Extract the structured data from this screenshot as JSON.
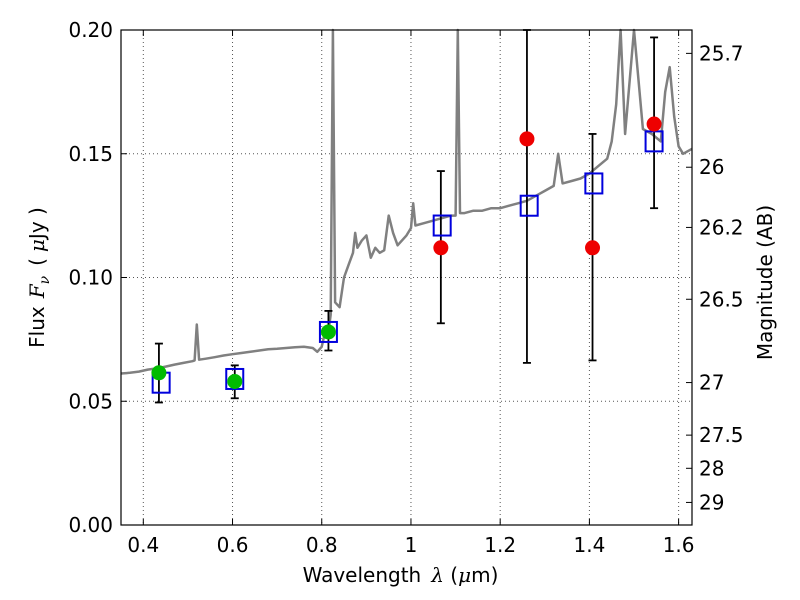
{
  "chart_data": {
    "type": "scatter",
    "title": "",
    "xlabel": "Wavelength",
    "xlabel_math": "λ",
    "xlabel_unit_open": " (",
    "xlabel_unit_mu": "μ",
    "xlabel_unit_rest": "m)",
    "ylabel": "Flux",
    "ylabel_math": "F",
    "ylabel_math_sub": "ν",
    "ylabel_unit_open": "(",
    "ylabel_unit_mu": "μ",
    "ylabel_unit_rest": "Jy )",
    "y2label": "Magnitude (AB)",
    "xlim": [
      0.35,
      1.63
    ],
    "ylim": [
      0.0,
      0.2
    ],
    "grid": true,
    "x_ticks": [
      0.4,
      0.6,
      0.8,
      1.0,
      1.2,
      1.4,
      1.6
    ],
    "x_tick_labels": [
      "0.4",
      "0.6",
      "0.8",
      "1",
      "1.2",
      "1.4",
      "1.6"
    ],
    "y_ticks": [
      0.0,
      0.05,
      0.1,
      0.15,
      0.2
    ],
    "y_tick_labels": [
      "0.00",
      "0.05",
      "0.10",
      "0.15",
      "0.20"
    ],
    "mag_ticks": [
      {
        "label": "25.7",
        "mag": 25.7
      },
      {
        "label": "26",
        "mag": 26.0
      },
      {
        "label": "26.2",
        "mag": 26.2
      },
      {
        "label": "26.5",
        "mag": 26.5
      },
      {
        "label": "27",
        "mag": 27.0
      },
      {
        "label": "27.5",
        "mag": 27.5
      },
      {
        "label": "28",
        "mag": 28.0
      },
      {
        "label": "29",
        "mag": 29.0
      }
    ],
    "colors": {
      "spectrum": "#808080",
      "green": "#00bb00",
      "red": "#ee0000",
      "model_box": "#0000dd",
      "errorbar": "#000000",
      "grid": "#555555"
    },
    "series": [
      {
        "name": "model spectrum",
        "style": "line",
        "points": [
          [
            0.35,
            0.0612
          ],
          [
            0.37,
            0.0615
          ],
          [
            0.39,
            0.062
          ],
          [
            0.41,
            0.0628
          ],
          [
            0.43,
            0.0633
          ],
          [
            0.45,
            0.064
          ],
          [
            0.47,
            0.0648
          ],
          [
            0.49,
            0.0655
          ],
          [
            0.51,
            0.0662
          ],
          [
            0.515,
            0.0665
          ],
          [
            0.52,
            0.081
          ],
          [
            0.525,
            0.0668
          ],
          [
            0.54,
            0.0672
          ],
          [
            0.56,
            0.0678
          ],
          [
            0.58,
            0.0685
          ],
          [
            0.6,
            0.069
          ],
          [
            0.62,
            0.0695
          ],
          [
            0.64,
            0.07
          ],
          [
            0.66,
            0.0705
          ],
          [
            0.68,
            0.071
          ],
          [
            0.7,
            0.0712
          ],
          [
            0.72,
            0.0715
          ],
          [
            0.74,
            0.0718
          ],
          [
            0.76,
            0.072
          ],
          [
            0.78,
            0.0715
          ],
          [
            0.79,
            0.07
          ],
          [
            0.8,
            0.072
          ],
          [
            0.81,
            0.08
          ],
          [
            0.815,
            0.078
          ],
          [
            0.82,
            0.085
          ],
          [
            0.825,
            0.2
          ],
          [
            0.83,
            0.09
          ],
          [
            0.84,
            0.088
          ],
          [
            0.85,
            0.1
          ],
          [
            0.86,
            0.105
          ],
          [
            0.87,
            0.11
          ],
          [
            0.875,
            0.118
          ],
          [
            0.88,
            0.112
          ],
          [
            0.89,
            0.115
          ],
          [
            0.9,
            0.117
          ],
          [
            0.91,
            0.108
          ],
          [
            0.92,
            0.112
          ],
          [
            0.93,
            0.11
          ],
          [
            0.94,
            0.111
          ],
          [
            0.95,
            0.125
          ],
          [
            0.96,
            0.118
          ],
          [
            0.97,
            0.113
          ],
          [
            0.98,
            0.115
          ],
          [
            0.99,
            0.117
          ],
          [
            1.0,
            0.12
          ],
          [
            1.005,
            0.13
          ],
          [
            1.01,
            0.121
          ],
          [
            1.03,
            0.122
          ],
          [
            1.05,
            0.123
          ],
          [
            1.07,
            0.124
          ],
          [
            1.09,
            0.125
          ],
          [
            1.1,
            0.125
          ],
          [
            1.105,
            0.2
          ],
          [
            1.11,
            0.126
          ],
          [
            1.12,
            0.126
          ],
          [
            1.14,
            0.127
          ],
          [
            1.16,
            0.127
          ],
          [
            1.18,
            0.128
          ],
          [
            1.2,
            0.128
          ],
          [
            1.22,
            0.129
          ],
          [
            1.24,
            0.13
          ],
          [
            1.26,
            0.131
          ],
          [
            1.28,
            0.133
          ],
          [
            1.3,
            0.135
          ],
          [
            1.32,
            0.137
          ],
          [
            1.33,
            0.15
          ],
          [
            1.34,
            0.138
          ],
          [
            1.36,
            0.139
          ],
          [
            1.38,
            0.14
          ],
          [
            1.4,
            0.142
          ],
          [
            1.42,
            0.145
          ],
          [
            1.44,
            0.148
          ],
          [
            1.45,
            0.155
          ],
          [
            1.46,
            0.17
          ],
          [
            1.47,
            0.2
          ],
          [
            1.48,
            0.158
          ],
          [
            1.5,
            0.2
          ],
          [
            1.52,
            0.16
          ],
          [
            1.54,
            0.158
          ],
          [
            1.56,
            0.155
          ],
          [
            1.57,
            0.175
          ],
          [
            1.58,
            0.185
          ],
          [
            1.59,
            0.165
          ],
          [
            1.6,
            0.153
          ],
          [
            1.61,
            0.15
          ],
          [
            1.63,
            0.152
          ]
        ]
      },
      {
        "name": "model photometry",
        "style": "open-square",
        "x": [
          0.44,
          0.605,
          0.815,
          1.07,
          1.265,
          1.41,
          1.545
        ],
        "y": [
          0.0575,
          0.059,
          0.078,
          0.121,
          0.129,
          0.138,
          0.155
        ]
      },
      {
        "name": "observed (green)",
        "style": "filled-circle",
        "x": [
          0.435,
          0.605,
          0.815
        ],
        "y": [
          0.0615,
          0.058,
          0.078
        ],
        "yerr_low": [
          0.0495,
          0.0512,
          0.0705
        ],
        "yerr_high": [
          0.0733,
          0.0645,
          0.0865
        ]
      },
      {
        "name": "observed (red)",
        "style": "filled-circle",
        "x": [
          1.067,
          1.26,
          1.407,
          1.545
        ],
        "y": [
          0.112,
          0.156,
          0.112,
          0.162
        ],
        "yerr_low": [
          0.0815,
          0.0655,
          0.0665,
          0.128
        ],
        "yerr_high": [
          0.143,
          0.2,
          0.158,
          0.197
        ]
      }
    ]
  }
}
